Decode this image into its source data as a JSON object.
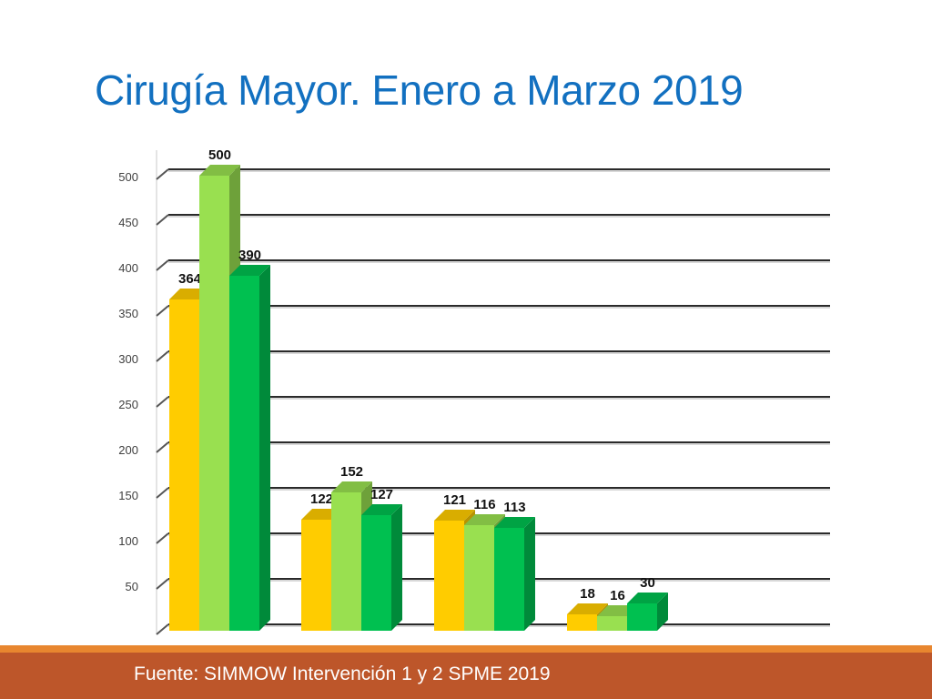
{
  "slide": {
    "title": "Cirugía Mayor. Enero a Marzo 2019",
    "footer": "Fuente: SIMMOW Intervención 1 y 2  SPME 2019"
  },
  "chart_data": {
    "type": "bar",
    "title": "",
    "xlabel": "",
    "ylabel": "",
    "ylim": [
      0,
      520
    ],
    "yticks": [
      50,
      100,
      150,
      200,
      250,
      300,
      350,
      400,
      450,
      500
    ],
    "grid": true,
    "legend": "none",
    "categories": [
      "",
      "",
      "",
      "",
      ""
    ],
    "series": [
      {
        "values": [
          364,
          122,
          121,
          18,
          null
        ],
        "color": "#ffcc00"
      },
      {
        "values": [
          500,
          152,
          116,
          16,
          null
        ],
        "color": "#99e050"
      },
      {
        "values": [
          390,
          127,
          113,
          30,
          null
        ],
        "color": "#00c050"
      }
    ]
  }
}
